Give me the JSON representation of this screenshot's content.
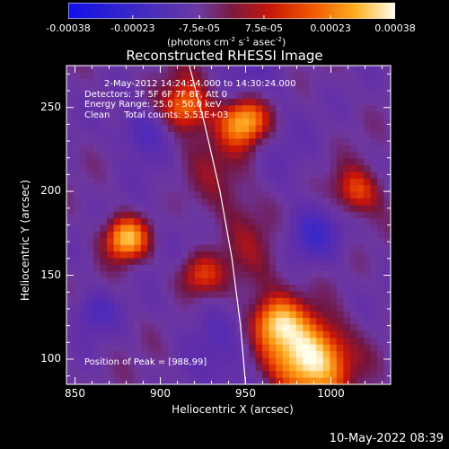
{
  "colorbar": {
    "tick_labels": [
      "-0.00038",
      "-0.00023",
      "-7.5e-05",
      "7.5e-05",
      "0.00023",
      "0.00038"
    ],
    "tick_values": [
      -0.00038,
      -0.00023,
      -7.5e-05,
      7.5e-05,
      0.00023,
      0.00038
    ],
    "unit_label": "(photons cm",
    "unit_exp1": "-2",
    "unit_mid": " s",
    "unit_exp2": "-1",
    "unit_end": " asec",
    "unit_exp3": "-2",
    "unit_close": ")",
    "range": [
      -0.00038,
      0.00038
    ]
  },
  "chart_data": {
    "type": "heatmap",
    "title": "Reconstructed RHESSI Image",
    "xlabel": "Heliocentric X (arcsec)",
    "ylabel": "Heliocentric Y (arcsec)",
    "xlim": [
      845,
      1035
    ],
    "ylim": [
      85,
      275
    ],
    "xticks": [
      850,
      900,
      950,
      1000
    ],
    "yticks": [
      100,
      150,
      200,
      250
    ],
    "xtick_labels": [
      "850",
      "900",
      "950",
      "1000"
    ],
    "ytick_labels": [
      "100",
      "150",
      "200",
      "250"
    ],
    "grid": false,
    "peak_position": [
      988,
      99
    ],
    "limb_curve": [
      [
        917,
        275
      ],
      [
        926,
        240
      ],
      [
        935,
        200
      ],
      [
        942,
        160
      ],
      [
        947,
        120
      ],
      [
        950,
        85
      ]
    ],
    "sources": [
      {
        "x": 988,
        "y": 100,
        "sigma": 16,
        "amp": 1.0
      },
      {
        "x": 880,
        "y": 172,
        "sigma": 9,
        "amp": 0.85
      },
      {
        "x": 950,
        "y": 242,
        "sigma": 10,
        "amp": 0.85
      },
      {
        "x": 968,
        "y": 122,
        "sigma": 10,
        "amp": 0.6
      },
      {
        "x": 922,
        "y": 150,
        "sigma": 10,
        "amp": 0.55
      },
      {
        "x": 1015,
        "y": 200,
        "sigma": 10,
        "amp": 0.55
      },
      {
        "x": 915,
        "y": 250,
        "sigma": 9,
        "amp": 0.5
      },
      {
        "x": 862,
        "y": 128,
        "sigma": 9,
        "amp": -0.35
      },
      {
        "x": 990,
        "y": 175,
        "sigma": 11,
        "amp": -0.4
      },
      {
        "x": 890,
        "y": 235,
        "sigma": 10,
        "amp": -0.35
      }
    ]
  },
  "info": {
    "time_range": "2-May-2012 14:24:24.000 to 14:30:24.000",
    "detectors": "Detectors: 3F 5F 6F 7F 8F, Att 0",
    "energy": "Energy Range: 25.0 - 50.0 keV",
    "clean": "Clean     Total counts: 5.53E+03",
    "peak": "Position of Peak = [988,99]"
  },
  "footer_timestamp": "10-May-2022 08:39"
}
